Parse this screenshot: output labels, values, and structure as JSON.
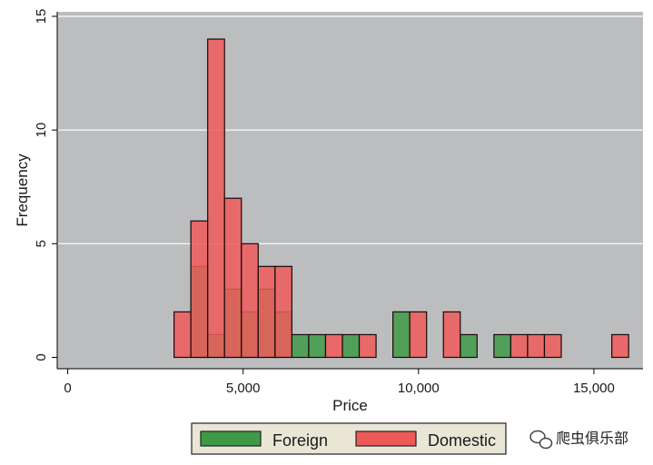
{
  "chart_data": {
    "type": "histogram",
    "title": "",
    "xlabel": "Price",
    "ylabel": "Frequency",
    "xlim": [
      -300,
      16400
    ],
    "ylim": [
      -0.5,
      15.2
    ],
    "bin_width": 480,
    "x_ticks": [
      0,
      5000,
      10000,
      15000
    ],
    "x_tick_labels": [
      "0",
      "5,000",
      "10,000",
      "15,000"
    ],
    "y_ticks": [
      0,
      5,
      10,
      15
    ],
    "y_tick_labels": [
      "0",
      "5",
      "10",
      "15"
    ],
    "grid": "y",
    "plot_background": "#bcbdbf",
    "legend_position": "bottom",
    "series": [
      {
        "name": "Foreign",
        "color": "#3f9a48",
        "bins": [
          {
            "x": 3750,
            "count": 4
          },
          {
            "x": 4230,
            "count": 1
          },
          {
            "x": 4710,
            "count": 3
          },
          {
            "x": 5190,
            "count": 2
          },
          {
            "x": 5670,
            "count": 3
          },
          {
            "x": 6150,
            "count": 2
          },
          {
            "x": 6630,
            "count": 1
          },
          {
            "x": 7110,
            "count": 1
          },
          {
            "x": 8070,
            "count": 1
          },
          {
            "x": 9510,
            "count": 2
          },
          {
            "x": 11430,
            "count": 1
          },
          {
            "x": 12390,
            "count": 1
          }
        ]
      },
      {
        "name": "Domestic",
        "color": "#ee5a5a",
        "bins": [
          {
            "x": 3270,
            "count": 2
          },
          {
            "x": 3750,
            "count": 6
          },
          {
            "x": 4230,
            "count": 14
          },
          {
            "x": 4710,
            "count": 7
          },
          {
            "x": 5190,
            "count": 5
          },
          {
            "x": 5670,
            "count": 4
          },
          {
            "x": 6150,
            "count": 4
          },
          {
            "x": 7590,
            "count": 1
          },
          {
            "x": 8550,
            "count": 1
          },
          {
            "x": 9990,
            "count": 2
          },
          {
            "x": 10950,
            "count": 2
          },
          {
            "x": 12870,
            "count": 1
          },
          {
            "x": 13350,
            "count": 1
          },
          {
            "x": 13830,
            "count": 1
          },
          {
            "x": 15750,
            "count": 1
          }
        ]
      }
    ]
  },
  "watermark": {
    "icon": "wechat-icon",
    "text": "爬虫俱乐部"
  }
}
